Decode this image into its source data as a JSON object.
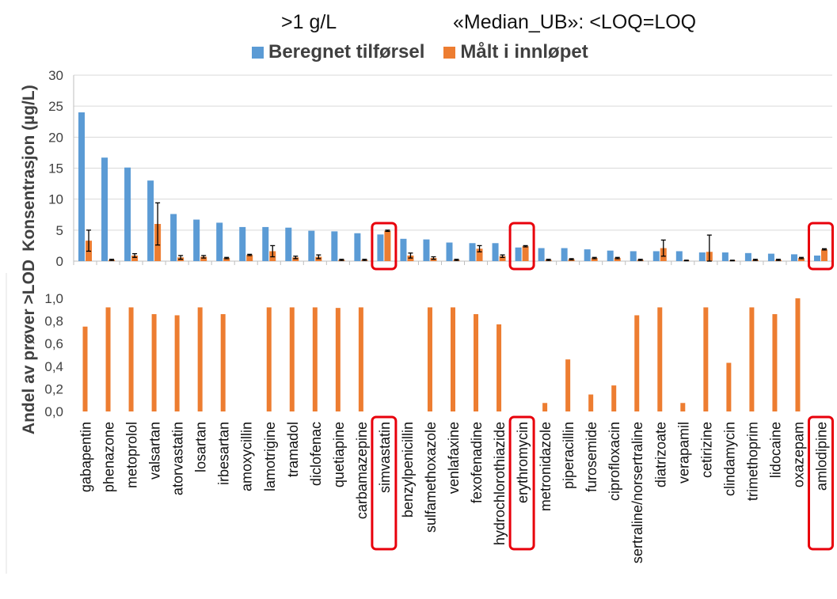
{
  "header": {
    "threshold": ">1 g/L",
    "method": "«Median_UB»: <LOQ=LOQ"
  },
  "colors": {
    "blue": "#5B9BD5",
    "orange": "#ED7D31",
    "highlight": "#E8000B",
    "grid": "#D9D9D9",
    "text": "#404040"
  },
  "chart_data": [
    {
      "type": "bar",
      "ylabel": "Konsentrasjon (µg/L)",
      "ylim": [
        0,
        30
      ],
      "yticks": [
        0,
        5,
        10,
        15,
        20,
        25,
        30
      ],
      "ytick_labels": [
        "0",
        "5",
        "10",
        "15",
        "20",
        "25",
        "30"
      ],
      "grid": true,
      "legend_position": "top",
      "categories": [
        "gabapentin",
        "phenazone",
        "metoprolol",
        "valsartan",
        "atorvastatin",
        "losartan",
        "irbesartan",
        "amoxycillin",
        "lamotrigine",
        "tramadol",
        "diclofenac",
        "quetiapine",
        "carbamazepine",
        "simvastatin",
        "benzylpenicillin",
        "sulfamethoxazole",
        "venlafaxine",
        "fexofenadine",
        "hydrochlorothiazide",
        "erythromycin",
        "metronidazole",
        "piperacillin",
        "furosemide",
        "ciprofloxacin",
        "sertraline/norsertraline",
        "diatrizoate",
        "verapamil",
        "cetirizine",
        "clindamycin",
        "trimethoprim",
        "lidocaine",
        "oxazepam",
        "amlodipine"
      ],
      "series": [
        {
          "name": "Beregnet tilførsel",
          "color": "#5B9BD5",
          "values": [
            24.0,
            16.7,
            15.1,
            13.0,
            7.6,
            6.7,
            6.2,
            5.5,
            5.5,
            5.4,
            4.9,
            4.8,
            4.5,
            4.3,
            3.6,
            3.5,
            3.0,
            2.9,
            2.9,
            2.2,
            2.1,
            2.1,
            1.9,
            1.7,
            1.6,
            1.6,
            1.6,
            1.4,
            1.4,
            1.3,
            1.2,
            1.1,
            0.9
          ]
        },
        {
          "name": "Målt i innløpet",
          "color": "#ED7D31",
          "values": [
            3.3,
            0.2,
            0.9,
            6.0,
            0.6,
            0.7,
            0.5,
            1.0,
            1.6,
            0.6,
            0.7,
            0.2,
            0.2,
            4.9,
            0.9,
            0.5,
            0.2,
            2.0,
            0.8,
            2.4,
            0.2,
            0.3,
            0.5,
            0.5,
            0.2,
            2.1,
            0.1,
            1.5,
            0.1,
            0.2,
            0.2,
            0.5,
            1.9
          ],
          "error": [
            1.7,
            0.1,
            0.3,
            3.4,
            0.3,
            0.2,
            0.1,
            0.1,
            0.9,
            0.2,
            0.3,
            0.1,
            0.1,
            0.1,
            0.4,
            0.2,
            0.1,
            0.5,
            0.2,
            0.1,
            0.1,
            0.1,
            0.1,
            0.1,
            0.1,
            1.3,
            0.05,
            2.7,
            0.05,
            0.1,
            0.1,
            0.1,
            0.1
          ]
        }
      ]
    },
    {
      "type": "bar",
      "ylabel": "Andel av prøver >LOD",
      "ylim": [
        0,
        1
      ],
      "yticks": [
        0,
        0.2,
        0.4,
        0.6,
        0.8,
        1.0
      ],
      "ytick_labels": [
        "0,0",
        "0,2",
        "0,4",
        "0,6",
        "0,8",
        "1,0"
      ],
      "grid": false,
      "series": [
        {
          "name": "",
          "color": "#ED7D31",
          "values": [
            0.75,
            0.92,
            0.92,
            0.86,
            0.85,
            0.92,
            0.86,
            0,
            0.92,
            0.92,
            0.92,
            0.915,
            0.92,
            0,
            0,
            0.92,
            0.92,
            0.86,
            0.77,
            0,
            0.075,
            0.46,
            0.15,
            0.23,
            0.85,
            0.92,
            0.075,
            0.92,
            0.43,
            0.92,
            0.86,
            1.0,
            0
          ]
        }
      ]
    }
  ],
  "highlighted": [
    "simvastatin",
    "erythromycin",
    "amlodipine"
  ]
}
